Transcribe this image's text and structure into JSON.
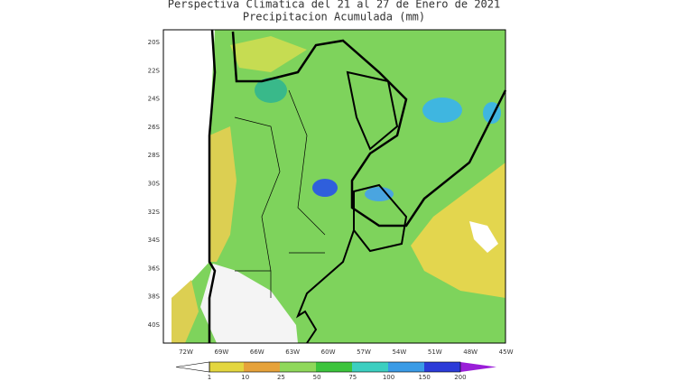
{
  "title": {
    "line1": "Perspectiva Climatica del 21 al 27 de Enero de 2021",
    "line2": "Precipitacion Acumulada (mm)"
  },
  "map": {
    "lat_labels": [
      "20S",
      "22S",
      "24S",
      "26S",
      "28S",
      "30S",
      "32S",
      "34S",
      "36S",
      "38S",
      "40S"
    ],
    "lon_labels": [
      "72W",
      "69W",
      "66W",
      "63W",
      "60W",
      "57W",
      "54W",
      "51W",
      "48W",
      "45W"
    ]
  },
  "colorbar": {
    "labels": [
      "1",
      "10",
      "25",
      "50",
      "75",
      "100",
      "150",
      "200"
    ]
  }
}
